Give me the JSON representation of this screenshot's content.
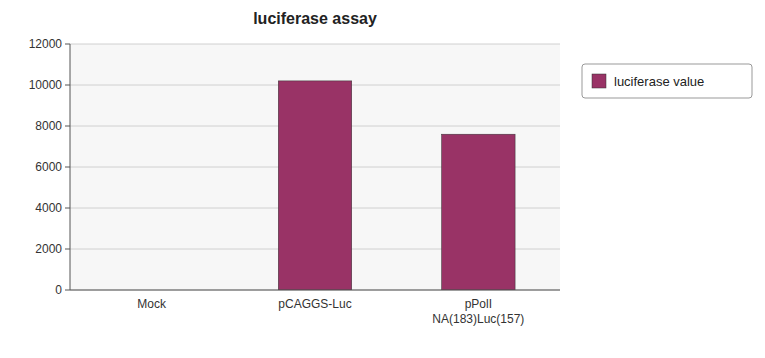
{
  "chart_data": {
    "type": "bar",
    "title": "luciferase assay",
    "categories": [
      "Mock",
      "pCAGGS-Luc",
      "pPolI\nNA(183)Luc(157)"
    ],
    "series": [
      {
        "name": "luciferase value",
        "color": "#993366",
        "values": [
          0,
          10200,
          7600
        ]
      }
    ],
    "ylim": [
      0,
      12000
    ],
    "yticks": [
      0,
      2000,
      4000,
      6000,
      8000,
      10000,
      12000
    ],
    "grid": true,
    "legend": "right"
  }
}
